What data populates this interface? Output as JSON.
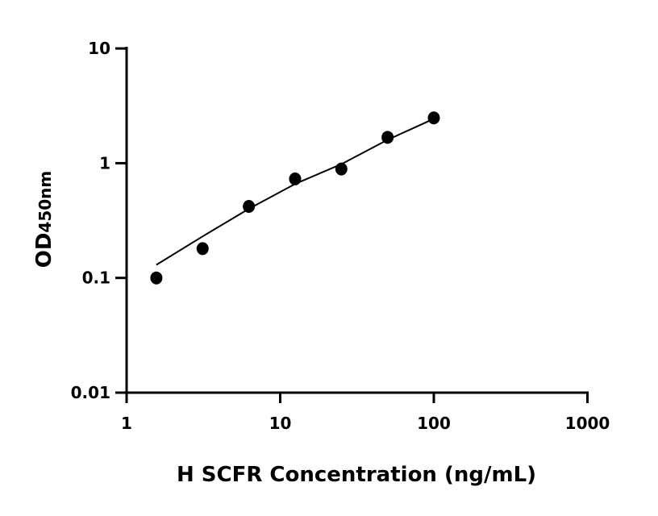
{
  "chart_data": {
    "type": "scatter",
    "title": "",
    "xlabel": "H SCFR Concentration (ng/mL)",
    "ylabel_main": "OD",
    "ylabel_sub": "450nm",
    "x_scale": "log",
    "y_scale": "log",
    "xlim": [
      1,
      1000
    ],
    "ylim": [
      0.01,
      10
    ],
    "x_ticks": [
      "1",
      "10",
      "100",
      "1000"
    ],
    "y_ticks": [
      "0.01",
      "0.1",
      "1",
      "10"
    ],
    "grid": false,
    "legend": "none",
    "marker_color": "#000000",
    "points": {
      "x": [
        1.5625,
        3.125,
        6.25,
        12.5,
        25,
        50,
        100
      ],
      "y": [
        0.1,
        0.18,
        0.42,
        0.73,
        0.89,
        1.68,
        2.48
      ]
    },
    "fit_curve": {
      "x": [
        1.5625,
        3.125,
        6.25,
        12.5,
        25,
        50,
        100
      ],
      "y": [
        0.13,
        0.23,
        0.4,
        0.66,
        0.98,
        1.6,
        2.44
      ]
    }
  }
}
